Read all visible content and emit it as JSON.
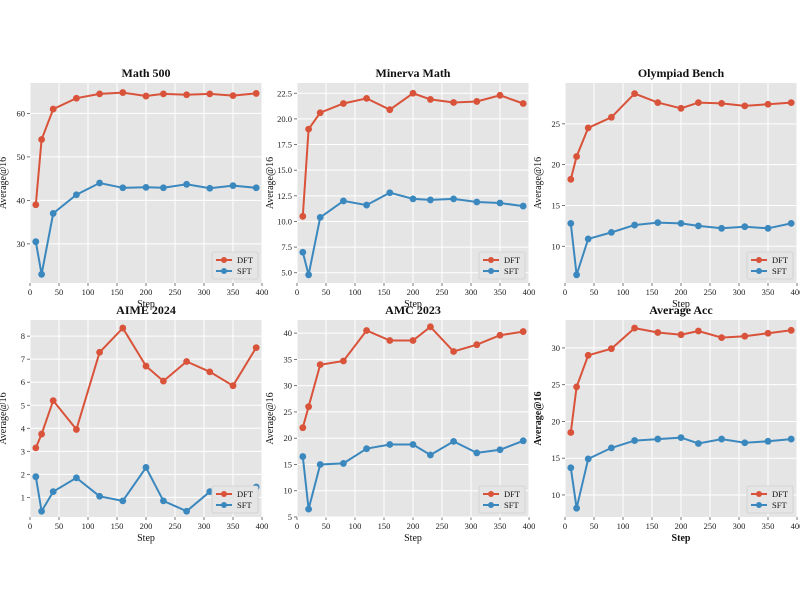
{
  "chart_data": [
    {
      "type": "line",
      "title": "Math 500",
      "xlabel": "Step",
      "ylabel": "Average@16",
      "xlim": [
        0,
        400
      ],
      "ylim": [
        21,
        67
      ],
      "xticks": [
        0,
        50,
        100,
        150,
        200,
        250,
        300,
        350,
        400
      ],
      "yticks": [
        30,
        40,
        50,
        60
      ],
      "grid": true,
      "legend": "bottom-right",
      "series": [
        {
          "name": "DFT",
          "color": "#d9533b",
          "x": [
            10,
            20,
            40,
            80,
            120,
            160,
            200,
            230,
            270,
            310,
            350,
            390
          ],
          "y": [
            39,
            54,
            61,
            63.5,
            64.5,
            64.8,
            64,
            64.5,
            64.3,
            64.5,
            64.1,
            64.6
          ]
        },
        {
          "name": "SFT",
          "color": "#3b88be",
          "x": [
            10,
            20,
            40,
            80,
            120,
            160,
            200,
            230,
            270,
            310,
            350,
            390
          ],
          "y": [
            30.5,
            23,
            37,
            41.3,
            44,
            42.9,
            43,
            42.9,
            43.7,
            42.8,
            43.4,
            42.9
          ]
        }
      ]
    },
    {
      "type": "line",
      "title": "Minerva Math",
      "xlabel": "Step",
      "ylabel": "Average@16",
      "xlim": [
        0,
        400
      ],
      "ylim": [
        4,
        23.5
      ],
      "xticks": [
        0,
        50,
        100,
        150,
        200,
        250,
        300,
        350,
        400
      ],
      "yticks": [
        "5.0",
        "7.5",
        "10.0",
        "12.5",
        "15.0",
        "17.5",
        "20.0",
        "22.5"
      ],
      "grid": true,
      "legend": "bottom-right",
      "series": [
        {
          "name": "DFT",
          "color": "#d9533b",
          "x": [
            10,
            20,
            40,
            80,
            120,
            160,
            200,
            230,
            270,
            310,
            350,
            390
          ],
          "y": [
            10.5,
            19,
            20.6,
            21.5,
            22,
            20.9,
            22.5,
            21.9,
            21.6,
            21.7,
            22.3,
            21.5
          ]
        },
        {
          "name": "SFT",
          "color": "#3b88be",
          "x": [
            10,
            20,
            40,
            80,
            120,
            160,
            200,
            230,
            270,
            310,
            350,
            390
          ],
          "y": [
            7,
            4.8,
            10.4,
            12,
            11.6,
            12.8,
            12.2,
            12.1,
            12.2,
            11.9,
            11.8,
            11.5
          ]
        }
      ]
    },
    {
      "type": "line",
      "title": "Olympiad Bench",
      "xlabel": "Step",
      "ylabel": "Average@16",
      "xlim": [
        0,
        400
      ],
      "ylim": [
        5.5,
        30
      ],
      "xticks": [
        0,
        50,
        100,
        150,
        200,
        250,
        300,
        350,
        400
      ],
      "yticks": [
        10,
        15,
        20,
        25
      ],
      "grid": true,
      "legend": "bottom-right",
      "series": [
        {
          "name": "DFT",
          "color": "#d9533b",
          "x": [
            10,
            20,
            40,
            80,
            120,
            160,
            200,
            230,
            270,
            310,
            350,
            390
          ],
          "y": [
            18.2,
            21,
            24.5,
            25.8,
            28.7,
            27.6,
            26.9,
            27.6,
            27.5,
            27.2,
            27.4,
            27.6
          ]
        },
        {
          "name": "SFT",
          "color": "#3b88be",
          "x": [
            10,
            20,
            40,
            80,
            120,
            160,
            200,
            230,
            270,
            310,
            350,
            390
          ],
          "y": [
            12.8,
            6.5,
            10.9,
            11.7,
            12.6,
            12.9,
            12.8,
            12.5,
            12.2,
            12.4,
            12.2,
            12.8
          ]
        }
      ]
    },
    {
      "type": "line",
      "title": "AIME 2024",
      "xlabel": "Step",
      "ylabel": "Average@16",
      "xlim": [
        0,
        400
      ],
      "ylim": [
        0.15,
        8.7
      ],
      "xticks": [
        0,
        50,
        100,
        150,
        200,
        250,
        300,
        350,
        400
      ],
      "yticks": [
        1,
        2,
        3,
        4,
        5,
        6,
        7,
        8
      ],
      "grid": true,
      "legend": "bottom-right",
      "series": [
        {
          "name": "DFT",
          "color": "#d9533b",
          "x": [
            10,
            20,
            40,
            80,
            120,
            160,
            200,
            230,
            270,
            310,
            350,
            390
          ],
          "y": [
            3.15,
            3.75,
            5.2,
            3.95,
            7.3,
            8.35,
            6.7,
            6.05,
            6.9,
            6.45,
            5.85,
            7.5
          ]
        },
        {
          "name": "SFT",
          "color": "#3b88be",
          "x": [
            10,
            20,
            40,
            80,
            120,
            160,
            200,
            230,
            270,
            310,
            350,
            390
          ],
          "y": [
            1.9,
            0.4,
            1.25,
            1.85,
            1.05,
            0.85,
            2.3,
            0.85,
            0.4,
            1.25,
            0.8,
            1.45
          ]
        }
      ]
    },
    {
      "type": "line",
      "title": "AMC 2023",
      "xlabel": "Step",
      "ylabel": "Average@16",
      "xlim": [
        0,
        400
      ],
      "ylim": [
        5,
        42.5
      ],
      "xticks": [
        0,
        50,
        100,
        150,
        200,
        250,
        300,
        350,
        400
      ],
      "yticks": [
        5,
        10,
        15,
        20,
        25,
        30,
        35,
        40
      ],
      "grid": true,
      "legend": "bottom-right",
      "series": [
        {
          "name": "DFT",
          "color": "#d9533b",
          "x": [
            10,
            20,
            40,
            80,
            120,
            160,
            200,
            230,
            270,
            310,
            350,
            390
          ],
          "y": [
            22,
            26,
            34,
            34.7,
            40.5,
            38.6,
            38.6,
            41.2,
            36.5,
            37.8,
            39.6,
            40.3
          ]
        },
        {
          "name": "SFT",
          "color": "#3b88be",
          "x": [
            10,
            20,
            40,
            80,
            120,
            160,
            200,
            230,
            270,
            310,
            350,
            390
          ],
          "y": [
            16.5,
            6.5,
            15,
            15.2,
            18,
            18.8,
            18.8,
            16.8,
            19.4,
            17.2,
            17.8,
            19.5
          ]
        }
      ]
    },
    {
      "type": "line",
      "title": "Average Acc",
      "xlabel": "Step",
      "ylabel": "Average@16",
      "xlim": [
        0,
        400
      ],
      "ylim": [
        7,
        33.8
      ],
      "xticks": [
        0,
        50,
        100,
        150,
        200,
        250,
        300,
        350,
        400
      ],
      "yticks": [
        10,
        15,
        20,
        25,
        30
      ],
      "grid": true,
      "legend": "bottom-right",
      "series": [
        {
          "name": "DFT",
          "color": "#d9533b",
          "x": [
            10,
            20,
            40,
            80,
            120,
            160,
            200,
            230,
            270,
            310,
            350,
            390
          ],
          "y": [
            18.5,
            24.7,
            29,
            29.9,
            32.7,
            32.1,
            31.8,
            32.3,
            31.4,
            31.6,
            32,
            32.4
          ]
        },
        {
          "name": "SFT",
          "color": "#3b88be",
          "x": [
            10,
            20,
            40,
            80,
            120,
            160,
            200,
            230,
            270,
            310,
            350,
            390
          ],
          "y": [
            13.7,
            8.2,
            14.9,
            16.4,
            17.4,
            17.6,
            17.8,
            17,
            17.6,
            17.1,
            17.3,
            17.6
          ]
        }
      ]
    }
  ]
}
